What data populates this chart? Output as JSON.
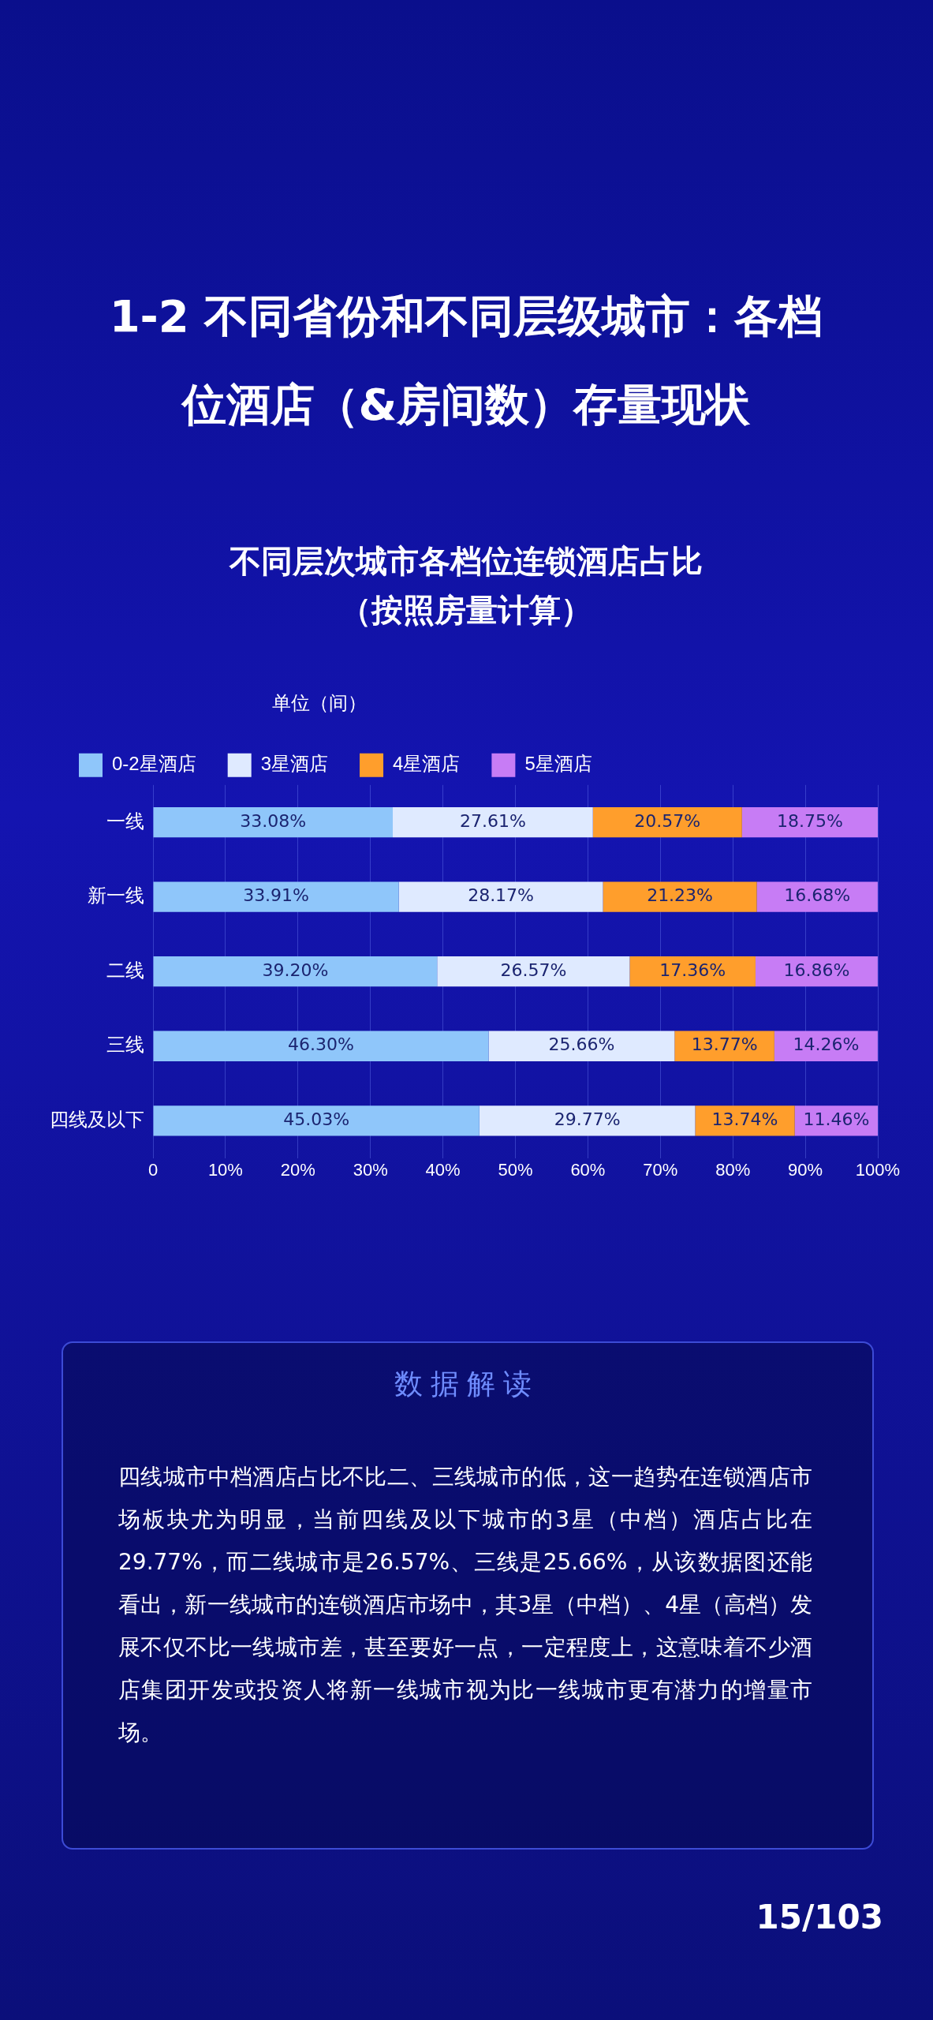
{
  "chart_data": {
    "type": "bar",
    "orientation": "horizontal",
    "stacked": true,
    "title": "1-2 不同省份和不同层级城市：各档位酒店（&房间数）存量现状",
    "subtitle": "不同层次城市各档位连锁酒店占比（按照房量计算）",
    "legend_title": "单位（间）",
    "categories": [
      "一线",
      "新一线",
      "二线",
      "三线",
      "四线及以下"
    ],
    "series": [
      {
        "name": "0-2星酒店",
        "color": "#8fc6fa",
        "values": [
          33.08,
          33.91,
          39.2,
          46.3,
          45.03
        ],
        "value_labels": [
          "33.08%",
          "33.91%",
          "39.20%",
          "46.30%",
          "45.03%"
        ]
      },
      {
        "name": "3星酒店",
        "color": "#dfeaff",
        "values": [
          27.61,
          28.17,
          26.57,
          25.66,
          29.77
        ],
        "value_labels": [
          "27.61%",
          "28.17%",
          "26.57%",
          "25.66%",
          "29.77%"
        ]
      },
      {
        "name": "4星酒店",
        "color": "#ff9e2c",
        "values": [
          20.57,
          21.23,
          17.36,
          13.77,
          13.74
        ],
        "value_labels": [
          "20.57%",
          "21.23%",
          "17.36%",
          "13.77%",
          "13.74%"
        ]
      },
      {
        "name": "5星酒店",
        "color": "#c77cf5",
        "values": [
          18.75,
          16.68,
          16.86,
          14.26,
          11.46
        ],
        "value_labels": [
          "18.75%",
          "16.68%",
          "16.86%",
          "14.26%",
          "11.46%"
        ]
      }
    ],
    "xlim": [
      0,
      100
    ],
    "xticks": [
      0,
      {
        "value": 10,
        "label": "10%"
      },
      {
        "value": 20,
        "label": "20%"
      },
      {
        "value": 30,
        "label": "30%"
      },
      {
        "value": 40,
        "label": "40%"
      },
      {
        "value": 50,
        "label": "50%"
      },
      {
        "value": 60,
        "label": "60%"
      },
      {
        "value": 70,
        "label": "70%"
      },
      {
        "value": 80,
        "label": "80%"
      },
      {
        "value": 90,
        "label": "90%"
      },
      {
        "value": 100,
        "label": "100%"
      }
    ],
    "grid": "x",
    "legend": "top",
    "annotations": [
      "数据解读",
      "四线城市中档酒店占比不比二、三线城市的低，这一趋势在连锁酒店市场板块尤为明显，当前四线及以下城市的3星（中档）酒店占比在29.77%，而二线城市是26.57%、三线是25.66%，从该数据图还能看出，新一线城市的连锁酒店市场中，其3星（中档）、4星（高档）发展不仅不比一线城市差，甚至要好一点，一定程度上，这意味着不少酒店集团开发或投资人将新一线城市视为比一线城市更有潜力的增量市场。",
      "15/103"
    ]
  }
}
